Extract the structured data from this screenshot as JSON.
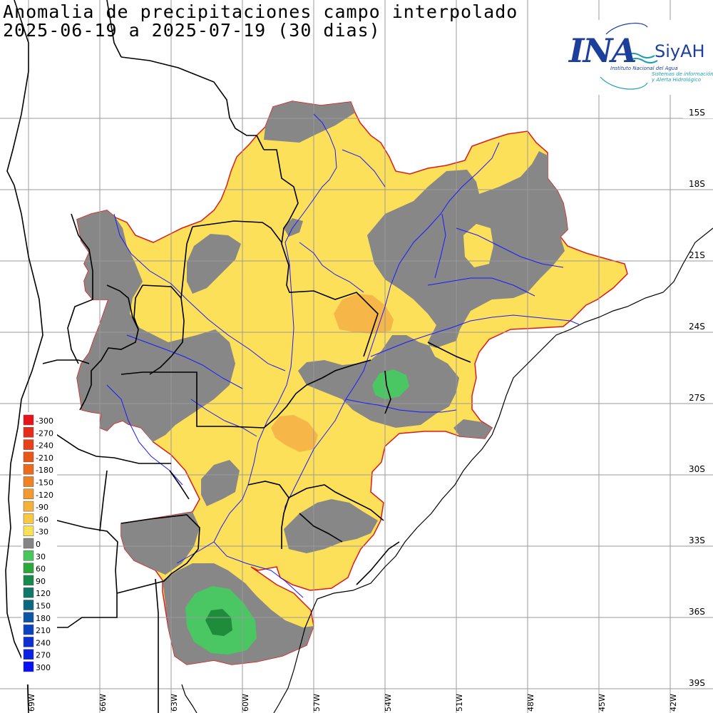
{
  "header": {
    "title_line1": "Anomalia de precipitaciones campo interpolado",
    "title_line2": "2025-06-19 a 2025-07-19 (30 dias)"
  },
  "logo": {
    "name": "INA",
    "system": "SiyAH",
    "subtitle": "Instituto Nacional del Agua",
    "tagline1": "Sistemas de información",
    "tagline2": "y Alerta Hidrológico"
  },
  "axes": {
    "latitude_labels": [
      "15S",
      "18S",
      "21S",
      "24S",
      "27S",
      "30S",
      "33S",
      "36S",
      "39S"
    ],
    "longitude_labels": [
      "69W",
      "66W",
      "63W",
      "60W",
      "57W",
      "54W",
      "51W",
      "48W",
      "45W",
      "42W"
    ]
  },
  "legend": {
    "values": [
      "-300",
      "-270",
      "-240",
      "-210",
      "-180",
      "-150",
      "-120",
      "-90",
      "-60",
      "-30",
      "0",
      "30",
      "60",
      "90",
      "120",
      "150",
      "180",
      "210",
      "240",
      "270",
      "300"
    ],
    "colors": [
      "#e8141c",
      "#e82a18",
      "#e84018",
      "#ea5618",
      "#ec6c1c",
      "#ee8224",
      "#f09a30",
      "#f4b238",
      "#f8c844",
      "#fae058",
      "#858585",
      "#48c85a",
      "#2aa83c",
      "#158a4c",
      "#107868",
      "#0c6680",
      "#0d55a6",
      "#0d42c0",
      "#0c30d6",
      "#0b22e6",
      "#0a10f4"
    ]
  },
  "colors": {
    "dry_light": "#fde05a",
    "dry_medium": "#f8c450",
    "dry_orange": "#f6b042",
    "near_normal": "#878787",
    "wet_green": "#4ac762",
    "wet_darkgreen": "#1f8c3c",
    "river": "#1a1aff",
    "basin_outline": "#dd1a1a"
  }
}
